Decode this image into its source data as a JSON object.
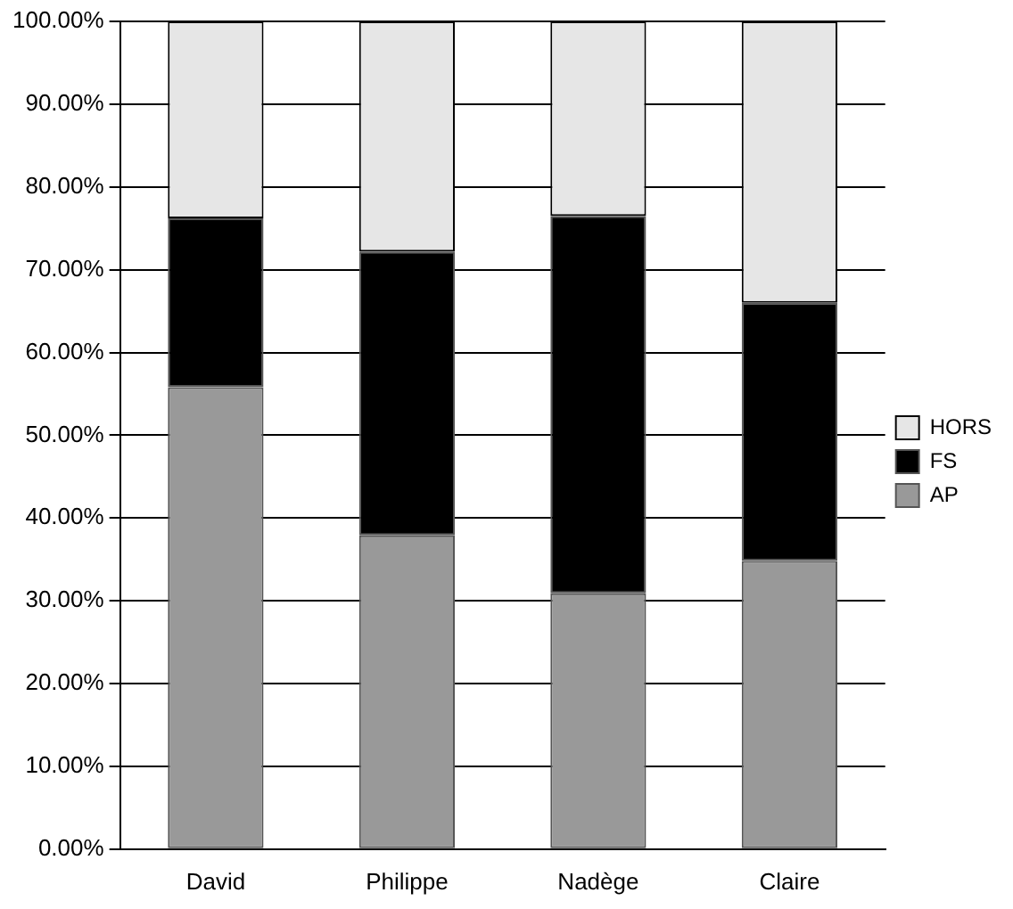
{
  "chart_data": {
    "type": "bar",
    "stacked": true,
    "categories": [
      "David",
      "Philippe",
      "Nadège",
      "Claire"
    ],
    "series": [
      {
        "name": "AP",
        "color": "#999999",
        "values": [
          55.8,
          37.9,
          30.9,
          34.8
        ]
      },
      {
        "name": "FS",
        "color": "#000000",
        "values": [
          20.4,
          34.3,
          45.6,
          31.2
        ]
      },
      {
        "name": "HORS",
        "color": "#e6e6e6",
        "values": [
          23.8,
          27.8,
          23.5,
          34.0
        ]
      }
    ],
    "ylim": [
      0,
      100
    ],
    "yticks": [
      {
        "value": 0,
        "label": "0.00%"
      },
      {
        "value": 10,
        "label": "10.00%"
      },
      {
        "value": 20,
        "label": "20.00%"
      },
      {
        "value": 30,
        "label": "30.00%"
      },
      {
        "value": 40,
        "label": "40.00%"
      },
      {
        "value": 50,
        "label": "50.00%"
      },
      {
        "value": 60,
        "label": "60.00%"
      },
      {
        "value": 70,
        "label": "70.00%"
      },
      {
        "value": 80,
        "label": "80.00%"
      },
      {
        "value": 90,
        "label": "90.00%"
      },
      {
        "value": 100,
        "label": "100.00%"
      }
    ],
    "grid": "y",
    "legend": "right"
  }
}
